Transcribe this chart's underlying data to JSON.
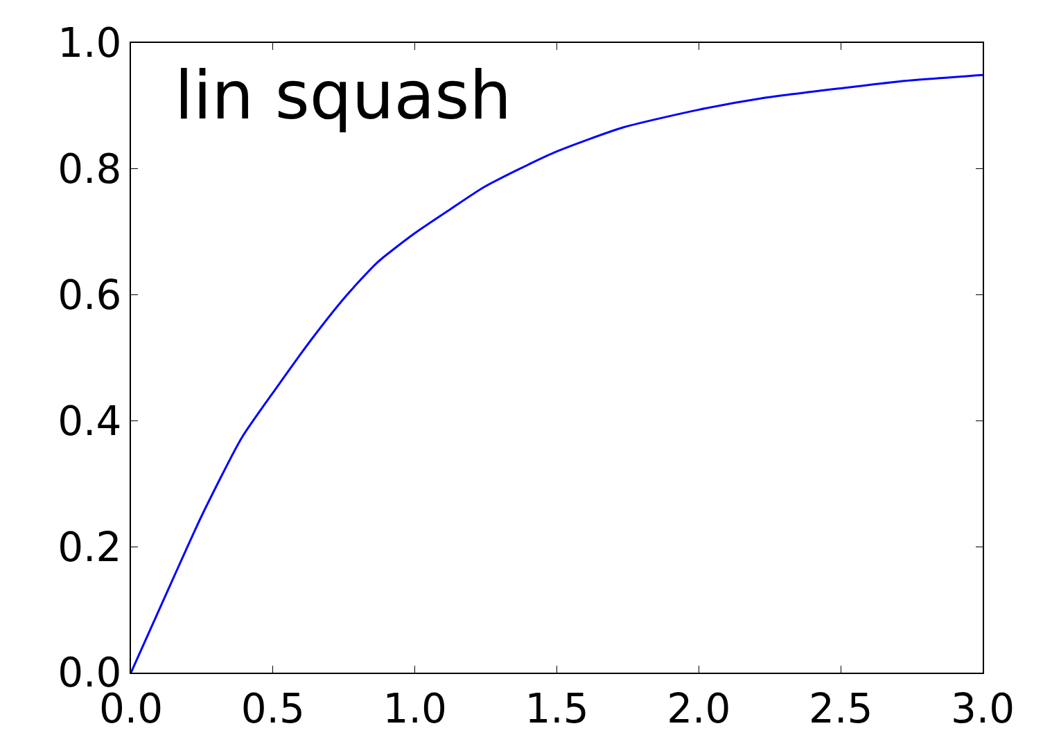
{
  "chart_data": {
    "type": "line",
    "annotations": [
      "lin squash"
    ],
    "x": [
      0,
      0.149,
      0.25,
      0.39,
      0.515,
      0.637,
      0.759,
      0.869,
      1.0,
      1.125,
      1.247,
      1.491,
      1.735,
      2.0,
      2.22,
      2.5,
      2.71,
      3.0
    ],
    "series": [
      {
        "color": "#0000ff",
        "values": [
          0,
          0.15,
          0.25,
          0.373,
          0.454,
          0.53,
          0.599,
          0.652,
          0.698,
          0.736,
          0.772,
          0.826,
          0.866,
          0.894,
          0.912,
          0.928,
          0.939,
          0.949
        ]
      }
    ],
    "xlim": [
      0,
      3
    ],
    "ylim": [
      0,
      1
    ],
    "xticks": [
      {
        "value": 0,
        "label": "0.0"
      },
      0.5,
      {
        "value": 1,
        "label": "1.0"
      },
      1.5,
      {
        "value": 2,
        "label": "2.0"
      },
      2.5,
      {
        "value": 3,
        "label": "3.0"
      }
    ],
    "yticks": [
      {
        "value": 0,
        "label": "0.0"
      },
      0.2,
      0.4,
      0.6,
      0.8,
      {
        "value": 1,
        "label": "1.0"
      }
    ],
    "grid": false,
    "marker": "none",
    "line_style": "solid"
  }
}
